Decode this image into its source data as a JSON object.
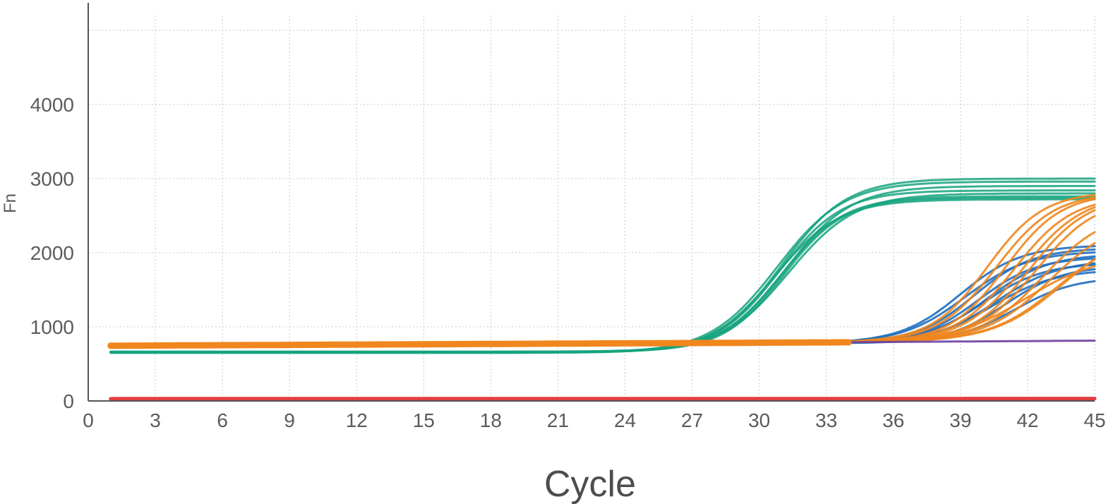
{
  "chart_data": {
    "type": "line",
    "xlabel": "Cycle",
    "ylabel": "Fn",
    "xlim": [
      0,
      45
    ],
    "ylim": [
      0,
      5200
    ],
    "x_ticks": [
      0,
      3,
      6,
      9,
      12,
      15,
      18,
      21,
      24,
      27,
      30,
      33,
      36,
      39,
      42,
      45
    ],
    "y_ticks": [
      0,
      1000,
      2000,
      3000,
      4000
    ],
    "grid": true,
    "legend": "none",
    "colors": {
      "green": "#16a37f",
      "orange": "#f0861e",
      "blue": "#1f6fbf",
      "purple": "#6b3fa0",
      "red": "#e02a2a"
    },
    "model": "sigmoid: Fn = base + slope*(cycle-1) + (plateau-base) / (1 + exp(-(cycle-midpoint)/width))",
    "series": [
      {
        "color": "green",
        "base": 655,
        "plateau": 3000,
        "midpoint": 31.0,
        "width": 1.45,
        "slope": 0
      },
      {
        "color": "green",
        "base": 650,
        "plateau": 2960,
        "midpoint": 30.8,
        "width": 1.5,
        "slope": 0
      },
      {
        "color": "green",
        "base": 660,
        "plateau": 2900,
        "midpoint": 31.2,
        "width": 1.45,
        "slope": 0
      },
      {
        "color": "green",
        "base": 665,
        "plateau": 2840,
        "midpoint": 30.9,
        "width": 1.4,
        "slope": 0
      },
      {
        "color": "green",
        "base": 655,
        "plateau": 2800,
        "midpoint": 31.3,
        "width": 1.5,
        "slope": 0
      },
      {
        "color": "green",
        "base": 660,
        "plateau": 2760,
        "midpoint": 31.0,
        "width": 1.4,
        "slope": 0
      },
      {
        "color": "green",
        "base": 650,
        "plateau": 2720,
        "midpoint": 30.7,
        "width": 1.45,
        "slope": 0
      },
      {
        "color": "green",
        "base": 665,
        "plateau": 2740,
        "midpoint": 31.1,
        "width": 1.35,
        "slope": 0
      },
      {
        "color": "blue",
        "base": 740,
        "plateau": 2050,
        "midpoint": 39.0,
        "width": 1.35,
        "slope": 1.2
      },
      {
        "color": "blue",
        "base": 740,
        "plateau": 2010,
        "midpoint": 39.6,
        "width": 1.3,
        "slope": 1.2
      },
      {
        "color": "blue",
        "base": 740,
        "plateau": 1970,
        "midpoint": 39.2,
        "width": 1.4,
        "slope": 1.2
      },
      {
        "color": "blue",
        "base": 740,
        "plateau": 1930,
        "midpoint": 40.2,
        "width": 1.35,
        "slope": 1.2
      },
      {
        "color": "blue",
        "base": 740,
        "plateau": 1890,
        "midpoint": 39.8,
        "width": 1.3,
        "slope": 1.2
      },
      {
        "color": "blue",
        "base": 740,
        "plateau": 1850,
        "midpoint": 40.6,
        "width": 1.4,
        "slope": 1.2
      },
      {
        "color": "blue",
        "base": 740,
        "plateau": 1810,
        "midpoint": 40.0,
        "width": 1.35,
        "slope": 1.2
      },
      {
        "color": "blue",
        "base": 740,
        "plateau": 1770,
        "midpoint": 41.0,
        "width": 1.3,
        "slope": 1.2
      },
      {
        "color": "blue",
        "base": 740,
        "plateau": 1720,
        "midpoint": 40.4,
        "width": 1.4,
        "slope": 1.2
      },
      {
        "color": "blue",
        "base": 740,
        "plateau": 1620,
        "midpoint": 41.4,
        "width": 1.35,
        "slope": 1.2
      },
      {
        "color": "orange",
        "base": 745,
        "plateau": 2760,
        "midpoint": 40.2,
        "width": 1.25,
        "slope": 1.4
      },
      {
        "color": "orange",
        "base": 745,
        "plateau": 2750,
        "midpoint": 40.6,
        "width": 1.3,
        "slope": 1.4
      },
      {
        "color": "orange",
        "base": 745,
        "plateau": 2740,
        "midpoint": 41.0,
        "width": 1.25,
        "slope": 1.4
      },
      {
        "color": "orange",
        "base": 745,
        "plateau": 2700,
        "midpoint": 41.4,
        "width": 1.3,
        "slope": 1.4
      },
      {
        "color": "orange",
        "base": 745,
        "plateau": 2720,
        "midpoint": 41.8,
        "width": 1.35,
        "slope": 1.4
      },
      {
        "color": "orange",
        "base": 745,
        "plateau": 2700,
        "midpoint": 42.1,
        "width": 1.3,
        "slope": 1.4
      },
      {
        "color": "orange",
        "base": 745,
        "plateau": 2680,
        "midpoint": 42.4,
        "width": 1.35,
        "slope": 1.4
      },
      {
        "color": "orange",
        "base": 745,
        "plateau": 2500,
        "midpoint": 42.7,
        "width": 1.4,
        "slope": 1.4
      },
      {
        "color": "orange",
        "base": 745,
        "plateau": 2400,
        "midpoint": 43.0,
        "width": 1.45,
        "slope": 1.4
      },
      {
        "color": "orange",
        "base": 745,
        "plateau": 2200,
        "midpoint": 43.3,
        "width": 1.5,
        "slope": 1.4
      },
      {
        "color": "orange",
        "base": 745,
        "plateau": 2300,
        "midpoint": 43.6,
        "width": 1.55,
        "slope": 1.4
      },
      {
        "color": "orange",
        "base": 745,
        "plateau": 1900,
        "midpoint": 41.9,
        "width": 1.6,
        "slope": 1.4
      },
      {
        "color": "purple",
        "base": 730,
        "plateau": 730,
        "midpoint": 45,
        "width": 1,
        "slope": 1.9
      },
      {
        "color": "red",
        "base": 30,
        "plateau": 30,
        "midpoint": 45,
        "width": 1,
        "slope": 0.05
      }
    ]
  }
}
